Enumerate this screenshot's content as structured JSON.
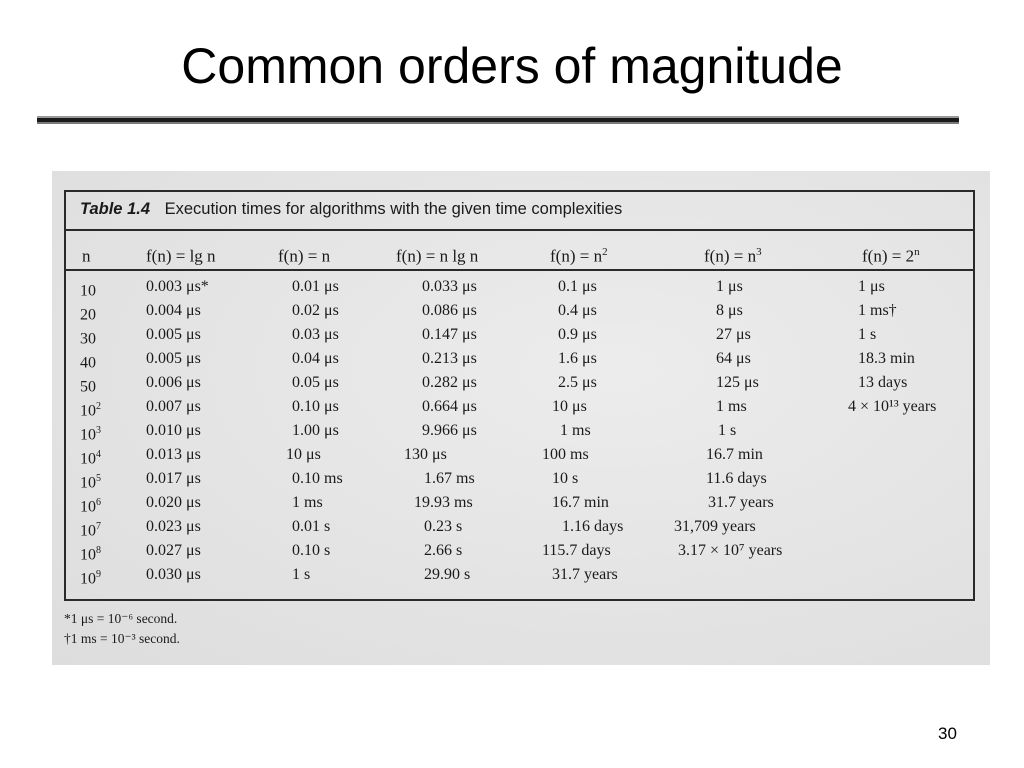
{
  "slide": {
    "title": "Common orders of magnitude",
    "page_number": "30"
  },
  "table": {
    "caption_number": "Table 1.4",
    "caption_text": "Execution times for algorithms with the given time complexities",
    "headers": [
      {
        "base": "n",
        "sup": ""
      },
      {
        "base": "f(n) = lg n",
        "sup": ""
      },
      {
        "base": "f(n) = n",
        "sup": ""
      },
      {
        "base": "f(n) = n lg n",
        "sup": ""
      },
      {
        "base": "f(n) = n",
        "sup": "2"
      },
      {
        "base": "f(n) = n",
        "sup": "3"
      },
      {
        "base": "f(n) = 2",
        "sup": "n"
      }
    ],
    "rows": [
      {
        "n_base": "10",
        "n_exp": "",
        "cells": [
          "0.003 μs*",
          "0.01 μs",
          "0.033 μs",
          "0.1 μs",
          "1 μs",
          "1 μs"
        ]
      },
      {
        "n_base": "20",
        "n_exp": "",
        "cells": [
          "0.004 μs",
          "0.02 μs",
          "0.086 μs",
          "0.4 μs",
          "8 μs",
          "1 ms†"
        ]
      },
      {
        "n_base": "30",
        "n_exp": "",
        "cells": [
          "0.005 μs",
          "0.03 μs",
          "0.147 μs",
          "0.9 μs",
          "27 μs",
          "1 s"
        ]
      },
      {
        "n_base": "40",
        "n_exp": "",
        "cells": [
          "0.005 μs",
          "0.04 μs",
          "0.213 μs",
          "1.6 μs",
          "64 μs",
          "18.3 min"
        ]
      },
      {
        "n_base": "50",
        "n_exp": "",
        "cells": [
          "0.006 μs",
          "0.05 μs",
          "0.282 μs",
          "2.5 μs",
          "125 μs",
          "13 days"
        ]
      },
      {
        "n_base": "10",
        "n_exp": "2",
        "cells": [
          "0.007 μs",
          "0.10 μs",
          "0.664 μs",
          "10 μs",
          "1 ms",
          "4 × 10¹³ years"
        ]
      },
      {
        "n_base": "10",
        "n_exp": "3",
        "cells": [
          "0.010 μs",
          "1.00 μs",
          "9.966 μs",
          "1 ms",
          "1 s",
          ""
        ]
      },
      {
        "n_base": "10",
        "n_exp": "4",
        "cells": [
          "0.013 μs",
          "10 μs",
          "130 μs",
          "100 ms",
          "16.7 min",
          ""
        ]
      },
      {
        "n_base": "10",
        "n_exp": "5",
        "cells": [
          "0.017 μs",
          "0.10 ms",
          "1.67 ms",
          "10 s",
          "11.6 days",
          ""
        ]
      },
      {
        "n_base": "10",
        "n_exp": "6",
        "cells": [
          "0.020 μs",
          "1 ms",
          "19.93 ms",
          "16.7 min",
          "31.7 years",
          ""
        ]
      },
      {
        "n_base": "10",
        "n_exp": "7",
        "cells": [
          "0.023 μs",
          "0.01 s",
          "0.23 s",
          "1.16 days",
          "31,709 years",
          ""
        ]
      },
      {
        "n_base": "10",
        "n_exp": "8",
        "cells": [
          "0.027 μs",
          "0.10 s",
          "2.66 s",
          "115.7 days",
          "3.17 × 10⁷ years",
          ""
        ]
      },
      {
        "n_base": "10",
        "n_exp": "9",
        "cells": [
          "0.030 μs",
          "1 s",
          "29.90 s",
          "31.7 years",
          "",
          ""
        ]
      }
    ],
    "footnotes": [
      "*1 μs = 10⁻⁶ second.",
      "†1 ms = 10⁻³ second."
    ]
  }
}
